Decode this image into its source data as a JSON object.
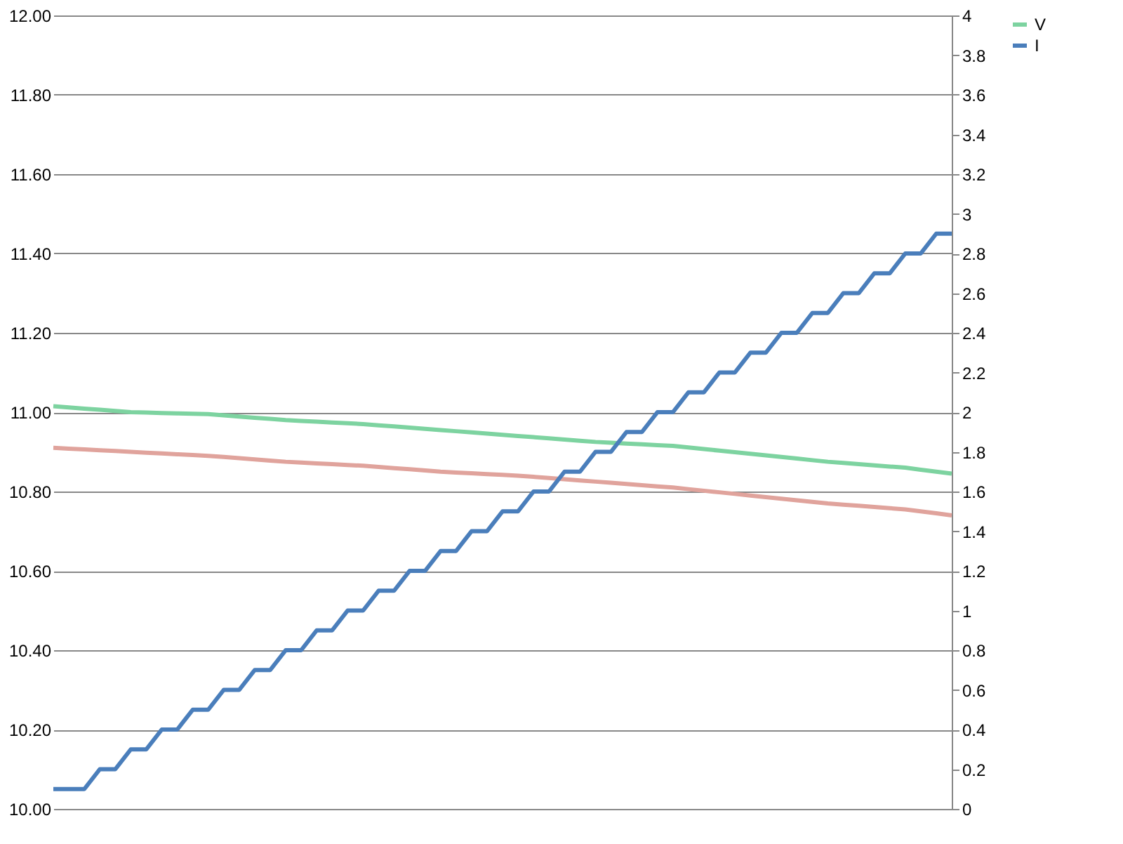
{
  "chart_data": {
    "type": "line",
    "categories": [
      null,
      null,
      null,
      null,
      null,
      null,
      null,
      null,
      null,
      null,
      null,
      null,
      null,
      null,
      null,
      null,
      null,
      null,
      null,
      null,
      null,
      null,
      null,
      null,
      null,
      null,
      null,
      null,
      null,
      null,
      null,
      null,
      null,
      null,
      null,
      null,
      null,
      null,
      null,
      null,
      null,
      null,
      null,
      null,
      null,
      null,
      null,
      null,
      null,
      null,
      null,
      null,
      null,
      null,
      null,
      null,
      null,
      null,
      null
    ],
    "tick_labels": "y",
    "grid": "y",
    "legend": "right",
    "line_style": "solid",
    "marker": "none",
    "ylim": [
      10,
      12
    ],
    "yticks": [
      {
        "value": 10,
        "label": "10.00"
      },
      {
        "value": 10.2,
        "label": "10.20"
      },
      {
        "value": 10.4,
        "label": "10.40"
      },
      {
        "value": 10.6,
        "label": "10.60"
      },
      {
        "value": 10.8,
        "label": "10.80"
      },
      {
        "value": 11,
        "label": "11.00"
      },
      {
        "value": 11.2,
        "label": "11.20"
      },
      {
        "value": 11.4,
        "label": "11.40"
      },
      {
        "value": 11.6,
        "label": "11.60"
      },
      {
        "value": 11.8,
        "label": "11.80"
      },
      {
        "value": 12,
        "label": "12.00"
      }
    ],
    "y2lim": [
      0,
      4
    ],
    "y2ticks": [
      0,
      0.2,
      0.4,
      0.6,
      0.8,
      1,
      1.2,
      1.4,
      1.6,
      1.8,
      2,
      2.2,
      2.4,
      2.6,
      2.8,
      3,
      3.2,
      3.4,
      3.6,
      3.8,
      4
    ],
    "series": [
      {
        "name": "V",
        "color": "#7dd3a0",
        "values": [
          11.015,
          11.012,
          11.009,
          11.006,
          11.003,
          11.0,
          10.999,
          10.998,
          10.997,
          10.996,
          10.995,
          10.992,
          10.989,
          10.986,
          10.983,
          10.98,
          10.978,
          10.976,
          10.974,
          10.972,
          10.97,
          10.967,
          10.964,
          10.961,
          10.958,
          10.955,
          10.952,
          10.949,
          10.946,
          10.943,
          10.94,
          10.937,
          10.934,
          10.931,
          10.928,
          10.925,
          10.923,
          10.921,
          10.919,
          10.917,
          10.915,
          10.911,
          10.907,
          10.903,
          10.899,
          10.895,
          10.891,
          10.887,
          10.883,
          10.879,
          10.875,
          10.872,
          10.869,
          10.866,
          10.863,
          10.86,
          10.855,
          10.85,
          10.845
        ]
      },
      {
        "color": "#e0a39c",
        "values": [
          10.91,
          10.908,
          10.906,
          10.904,
          10.902,
          10.9,
          10.898,
          10.896,
          10.894,
          10.892,
          10.89,
          10.887,
          10.884,
          10.881,
          10.878,
          10.875,
          10.873,
          10.871,
          10.869,
          10.867,
          10.865,
          10.862,
          10.859,
          10.856,
          10.853,
          10.85,
          10.848,
          10.846,
          10.844,
          10.842,
          10.84,
          10.837,
          10.834,
          10.831,
          10.828,
          10.825,
          10.822,
          10.819,
          10.816,
          10.813,
          10.81,
          10.806,
          10.802,
          10.798,
          10.794,
          10.79,
          10.786,
          10.782,
          10.778,
          10.774,
          10.77,
          10.767,
          10.764,
          10.761,
          10.758,
          10.755,
          10.75,
          10.745,
          10.74
        ]
      },
      {
        "name": "I",
        "axis": "y2",
        "color": "#4a7ebb",
        "values": [
          0.1,
          0.1,
          0.1,
          0.2,
          0.2,
          0.3,
          0.3,
          0.4,
          0.4,
          0.5,
          0.5,
          0.6,
          0.6,
          0.7,
          0.7,
          0.8,
          0.8,
          0.9,
          0.9,
          1.0,
          1.0,
          1.1,
          1.1,
          1.2,
          1.2,
          1.3,
          1.3,
          1.4,
          1.4,
          1.5,
          1.5,
          1.6,
          1.6,
          1.7,
          1.7,
          1.8,
          1.8,
          1.9,
          1.9,
          2.0,
          2.0,
          2.1,
          2.1,
          2.2,
          2.2,
          2.3,
          2.3,
          2.4,
          2.4,
          2.5,
          2.5,
          2.6,
          2.6,
          2.7,
          2.7,
          2.8,
          2.8,
          2.9,
          2.9
        ]
      }
    ]
  }
}
